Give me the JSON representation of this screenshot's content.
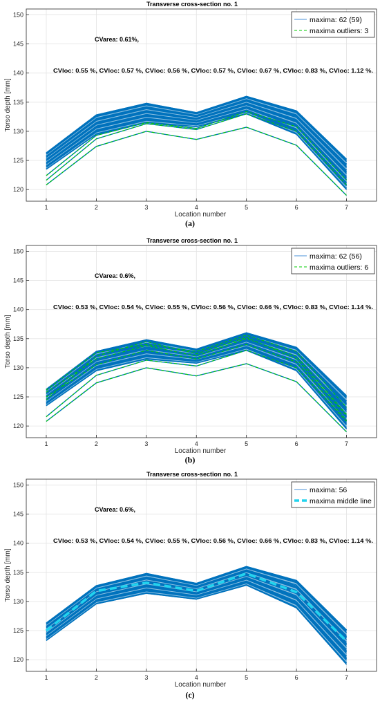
{
  "chart_data": [
    {
      "panel_label": "(a)",
      "type": "line",
      "title": "Transverse cross-section no. 1",
      "xlabel": "Location number",
      "ylabel": "Torso depth [mm]",
      "x": [
        1,
        2,
        3,
        4,
        5,
        6,
        7
      ],
      "xlim": [
        0.6,
        7.6
      ],
      "ylim": [
        118,
        151
      ],
      "xticks": [
        1,
        2,
        3,
        4,
        5,
        6,
        7
      ],
      "yticks": [
        120,
        125,
        130,
        135,
        140,
        145,
        150
      ],
      "grid": true,
      "legend_position": "top-right",
      "legend": [
        "maxima: 62 (59)",
        "maxima outliers: 3"
      ],
      "annotations": {
        "cvarea": "CVarea: 0.61%,",
        "cvloc": "CVloc: 0.55 %, CVloc: 0.57 %, CVloc: 0.56 %, CVloc: 0.57 %, CVloc: 0.67 %, CVloc: 0.83 %, CVloc: 1.12 %."
      },
      "series": [
        {
          "name": "maxima: 62 (59)",
          "color": "#0072BD",
          "style": "solid",
          "band_low": [
            123.5,
            129.5,
            131.5,
            130.8,
            133.0,
            129.5,
            120.0
          ],
          "band_high": [
            126.3,
            132.8,
            134.8,
            133.2,
            136.0,
            133.5,
            125.2
          ]
        },
        {
          "name": "maxima outliers: 3",
          "color": "#00CC00",
          "style": "dashed",
          "lines": [
            [
              120.8,
              127.4,
              130.0,
              128.6,
              130.7,
              127.6,
              119.0
            ],
            [
              121.6,
              128.7,
              131.3,
              130.3,
              133.0,
              130.0,
              120.8
            ],
            [
              122.4,
              129.3,
              131.5,
              130.5,
              133.4,
              130.8,
              121.6
            ]
          ]
        }
      ]
    },
    {
      "panel_label": "(b)",
      "type": "line",
      "title": "Transverse cross-section no. 1",
      "xlabel": "Location number",
      "ylabel": "Torso depth [mm]",
      "x": [
        1,
        2,
        3,
        4,
        5,
        6,
        7
      ],
      "xlim": [
        0.6,
        7.6
      ],
      "ylim": [
        118,
        151
      ],
      "xticks": [
        1,
        2,
        3,
        4,
        5,
        6,
        7
      ],
      "yticks": [
        120,
        125,
        130,
        135,
        140,
        145,
        150
      ],
      "grid": true,
      "legend_position": "top-right",
      "legend": [
        "maxima: 62 (56)",
        "maxima outliers: 6"
      ],
      "annotations": {
        "cvarea": "CVarea: 0.6%,",
        "cvloc": "CVloc: 0.53 %, CVloc: 0.54 %, CVloc: 0.55 %, CVloc: 0.56 %, CVloc: 0.66 %, CVloc: 0.83 %, CVloc: 1.14 %."
      },
      "series": [
        {
          "name": "maxima: 62 (56)",
          "color": "#0072BD",
          "style": "solid",
          "band_low": [
            123.5,
            129.5,
            131.5,
            130.8,
            133.0,
            129.5,
            119.5
          ],
          "band_high": [
            126.3,
            132.8,
            134.8,
            133.2,
            136.0,
            133.5,
            125.2
          ]
        },
        {
          "name": "maxima outliers: 6",
          "color": "#00CC00",
          "style": "dashed",
          "lines": [
            [
              120.8,
              127.4,
              130.0,
              128.6,
              130.7,
              127.6,
              119.0
            ],
            [
              121.6,
              128.7,
              131.3,
              130.3,
              133.0,
              130.0,
              120.8
            ],
            [
              125.0,
              130.5,
              133.0,
              131.5,
              134.0,
              131.0,
              121.0
            ],
            [
              125.8,
              131.5,
              133.8,
              132.0,
              135.0,
              132.0,
              122.0
            ],
            [
              126.2,
              132.6,
              134.0,
              132.8,
              135.6,
              132.8,
              123.2
            ],
            [
              124.5,
              132.0,
              134.5,
              132.4,
              135.2,
              131.5,
              121.8
            ]
          ]
        }
      ]
    },
    {
      "panel_label": "(c)",
      "type": "line",
      "title": "Transverse cross-section no. 1",
      "xlabel": "Location number",
      "ylabel": "Torso depth [mm]",
      "x": [
        1,
        2,
        3,
        4,
        5,
        6,
        7
      ],
      "xlim": [
        0.6,
        7.6
      ],
      "ylim": [
        118,
        151
      ],
      "xticks": [
        1,
        2,
        3,
        4,
        5,
        6,
        7
      ],
      "yticks": [
        120,
        125,
        130,
        135,
        140,
        145,
        150
      ],
      "grid": true,
      "legend_position": "top-right",
      "legend": [
        "maxima: 56",
        "maxima middle line"
      ],
      "annotations": {
        "cvarea": "CVarea: 0.6%,",
        "cvloc": "CVloc: 0.53 %, CVloc: 0.54 %, CVloc: 0.55 %, CVloc: 0.56 %, CVloc: 0.66 %, CVloc: 0.83 %, CVloc: 1.14 %."
      },
      "series": [
        {
          "name": "maxima: 56",
          "color": "#0072BD",
          "style": "solid",
          "band_low": [
            123.3,
            129.6,
            131.4,
            130.4,
            132.8,
            128.9,
            119.2
          ],
          "band_high": [
            126.3,
            132.7,
            134.8,
            133.1,
            136.0,
            133.6,
            125.1
          ]
        },
        {
          "name": "maxima middle line",
          "color": "#22D3EE",
          "style": "dashed-thick",
          "values": [
            125.0,
            131.8,
            133.2,
            131.8,
            134.8,
            131.6,
            123.2
          ]
        }
      ]
    }
  ]
}
